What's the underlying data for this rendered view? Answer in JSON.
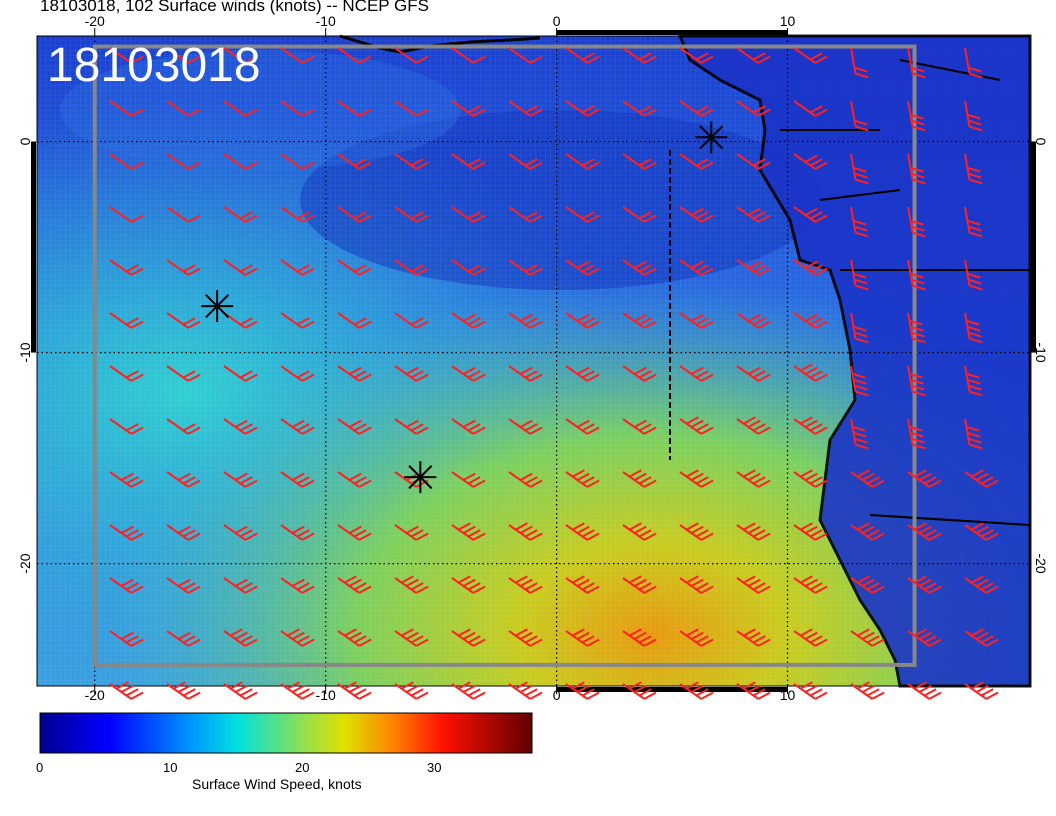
{
  "title": "18103018, 102 Surface winds (knots) -- NCEP GFS",
  "stamp": "18103018",
  "map": {
    "lon_labels": [
      "-20",
      "-10",
      "0",
      "10"
    ],
    "lat_labels": [
      "0",
      "-10",
      "-20"
    ],
    "lon_ticks": [
      -20,
      -10,
      0,
      10
    ],
    "lat_ticks": [
      0,
      -10,
      -20
    ],
    "lon_range": [
      -22.5,
      20.5
    ],
    "lat_range": [
      5.0,
      -25.8
    ],
    "background_color": "#1e4fd8",
    "barb_color": "#ff2020",
    "markers": [
      {
        "name": "storm-marker-1",
        "lon": 6.7,
        "lat": 0.2
      },
      {
        "name": "storm-marker-2",
        "lon": -14.7,
        "lat": -7.8
      },
      {
        "name": "storm-marker-3",
        "lon": -5.9,
        "lat": -15.9
      }
    ]
  },
  "colorbar": {
    "title": "Surface Wind Speed, knots",
    "ticks": [
      "0",
      "10",
      "20",
      "30"
    ],
    "colors": [
      "#00008f",
      "#0030ff",
      "#00c8ff",
      "#c8d800",
      "#ff6000",
      "#c00000",
      "#600000"
    ]
  }
}
